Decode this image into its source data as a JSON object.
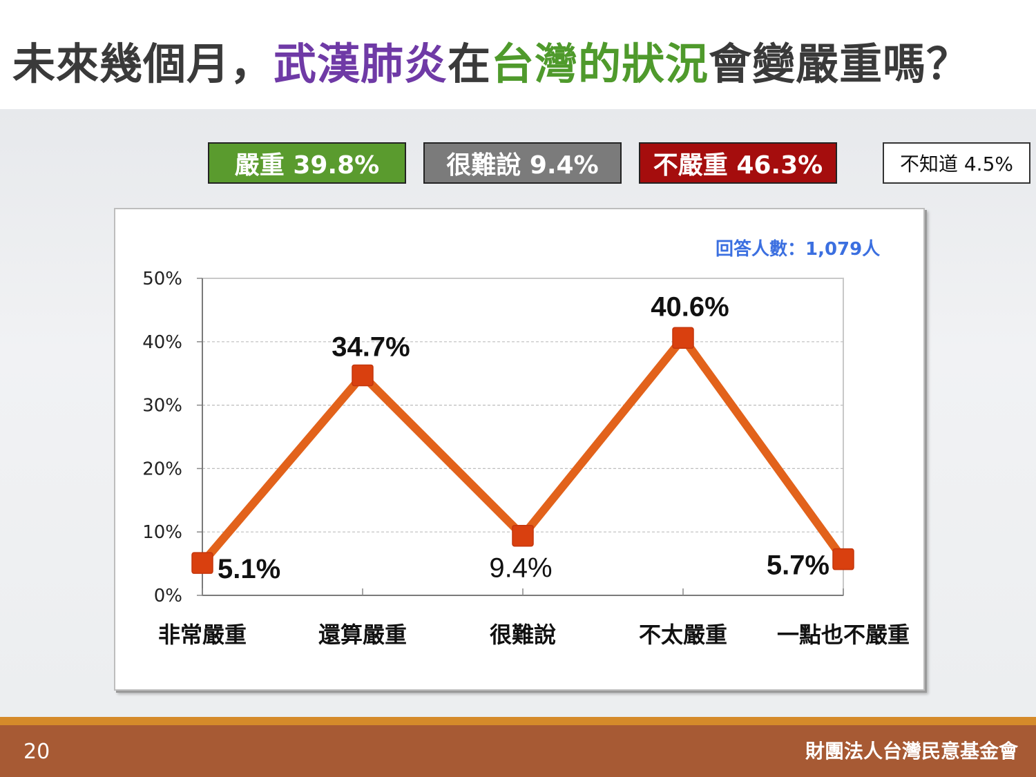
{
  "title": {
    "part1": "未來幾個月，",
    "part2": "武漢肺炎",
    "part3": "在",
    "part4": "台灣的狀況",
    "part5": "會變嚴重嗎？"
  },
  "summary": {
    "serious": "嚴重 39.8%",
    "hard_to_say": "很難說 9.4%",
    "not_serious": "不嚴重 46.3%",
    "dont_know": "不知道 4.5%"
  },
  "respondents": "回答人數：1,079人",
  "colors": {
    "line": "#e2621b",
    "marker": "#d9400f",
    "serious": "#5a9b2e",
    "hard_to_say": "#7b7b7b",
    "not_serious": "#a50d0d"
  },
  "chart_data": {
    "type": "line",
    "categories": [
      "非常嚴重",
      "還算嚴重",
      "很難說",
      "不太嚴重",
      "一點也不嚴重"
    ],
    "values": [
      5.1,
      34.7,
      9.4,
      40.6,
      5.7
    ],
    "data_labels": [
      "5.1%",
      "34.7%",
      "9.4%",
      "40.6%",
      "5.7%"
    ],
    "y_ticks": [
      "0%",
      "10%",
      "20%",
      "30%",
      "40%",
      "50%"
    ],
    "ylim": [
      0,
      50
    ],
    "grid": true
  },
  "footer": {
    "page": "20",
    "org": "財團法人台灣民意基金會"
  }
}
